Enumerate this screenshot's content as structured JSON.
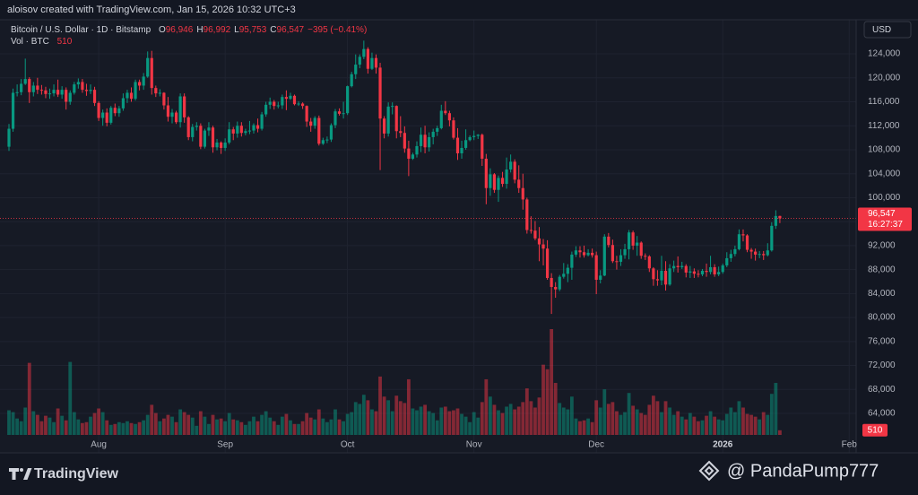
{
  "chart_data": {
    "type": "candlestick",
    "credit": "aloisov created with TradingView.com, Jan 15, 2026 10:32 UTC+3",
    "symbol": "Bitcoin / U.S. Dollar · 1D · Bitstamp",
    "ohlc_keys": [
      "O",
      "H",
      "L",
      "C"
    ],
    "ohlc_labels": [
      "96,946",
      "96,992",
      "95,753",
      "96,547"
    ],
    "change": "−395 (−0.41%)",
    "volume_title": "Vol · BTC",
    "currency": "USD",
    "last_price_label": "96,547",
    "countdown": "16:27:37",
    "brand": "TradingView",
    "watermark": "@ PandaPump777",
    "up_color": "#089981",
    "down_color": "#f23645",
    "grid": true,
    "xlim": [
      -2.2,
      207.7
    ],
    "ylim": [
      57420,
      129690
    ],
    "xticks": [
      {
        "value": 22,
        "label": "Aug"
      },
      {
        "value": 53,
        "label": "Sep"
      },
      {
        "value": 83,
        "label": "Oct"
      },
      {
        "value": 114,
        "label": "Nov"
      },
      {
        "value": 144,
        "label": "Dec"
      },
      {
        "value": 175,
        "label": "2026"
      },
      {
        "value": 206,
        "label": "Feb"
      }
    ],
    "yticks": [
      {
        "value": 64000,
        "label": "64,000"
      },
      {
        "value": 68000,
        "label": "68,000"
      },
      {
        "value": 72000,
        "label": "72,000"
      },
      {
        "value": 76000,
        "label": "76,000"
      },
      {
        "value": 80000,
        "label": "80,000"
      },
      {
        "value": 84000,
        "label": "84,000"
      },
      {
        "value": 88000,
        "label": "88,000"
      },
      {
        "value": 92000,
        "label": "92,000"
      },
      {
        "value": 96000,
        "label": "96,000"
      },
      {
        "value": 100000,
        "label": "100,000"
      },
      {
        "value": 104000,
        "label": "104,000"
      },
      {
        "value": 108000,
        "label": "108,000"
      },
      {
        "value": 112000,
        "label": "112,000"
      },
      {
        "value": 116000,
        "label": "116,000"
      },
      {
        "value": 120000,
        "label": "120,000"
      },
      {
        "value": 124000,
        "label": "124,000"
      }
    ],
    "open": [
      108500,
      111500,
      117500,
      117600,
      119000,
      119800,
      117600,
      118700,
      118000,
      117900,
      117300,
      117400,
      118000,
      117200,
      118000,
      116000,
      117500,
      118900,
      119300,
      118000,
      117800,
      118000,
      115800,
      113300,
      114200,
      112500,
      115000,
      114100,
      114900,
      116600,
      117500,
      116500,
      119300,
      118700,
      120200,
      123300,
      118300,
      117400,
      117500,
      115400,
      113500,
      114200,
      112600,
      116900,
      113400,
      110100,
      111800,
      112000,
      108500,
      111200,
      111700,
      108400,
      109200,
      108300,
      109200,
      111400,
      110700,
      112000,
      110800,
      111100,
      111200,
      112100,
      111500,
      113900,
      115500,
      116000,
      115300,
      115400,
      116800,
      116500,
      117000,
      115600,
      115700,
      115300,
      112700,
      112000,
      113300,
      109000,
      109600,
      109700,
      112100,
      114400,
      114000,
      114100,
      118600,
      120600,
      122200,
      123500,
      124800,
      121500,
      123300,
      121700,
      113200,
      110700,
      115200,
      115300,
      111100,
      110800,
      108200,
      106500,
      107200,
      108600,
      110500,
      108400,
      110100,
      111000,
      111600,
      114500,
      114100,
      112900,
      110000,
      107400,
      108300,
      109600,
      110100,
      110300,
      110500,
      106500,
      101600,
      103900,
      101300,
      103300,
      102300,
      104700,
      106000,
      103000,
      101600,
      99700,
      94600,
      94500,
      93200,
      92200,
      91500,
      86600,
      85100,
      84700,
      86800,
      87300,
      88300,
      90500,
      91200,
      90900,
      90400,
      90800,
      90400,
      86300,
      87000,
      93500,
      92100,
      89400,
      89300,
      90400,
      91400,
      94200,
      92000,
      92500,
      90300,
      90200,
      88200,
      86400,
      86200,
      87800,
      85500,
      88200,
      88600,
      88400,
      88600,
      87500,
      87700,
      87300,
      87200,
      87800,
      87600,
      88400,
      87200,
      87600,
      88700,
      89900,
      90600,
      91400,
      93900,
      93700,
      91300,
      91000,
      90500,
      90600,
      90400,
      91200,
      95300,
      96946
    ],
    "high": [
      112300,
      118200,
      118900,
      119800,
      123200,
      120100,
      119300,
      120000,
      118800,
      118500,
      118200,
      118900,
      119700,
      118600,
      118400,
      117900,
      119300,
      119900,
      119800,
      119000,
      118900,
      118500,
      116100,
      114700,
      114900,
      115300,
      115700,
      115300,
      117400,
      118000,
      118400,
      119700,
      119700,
      120800,
      124400,
      124500,
      118700,
      118100,
      117600,
      116800,
      114800,
      114500,
      117400,
      117400,
      113600,
      112300,
      112600,
      112400,
      111500,
      112600,
      112000,
      109800,
      109400,
      109900,
      112600,
      111800,
      112700,
      112600,
      111500,
      112800,
      112400,
      113200,
      114300,
      116000,
      116700,
      116300,
      116000,
      117200,
      117900,
      117500,
      117200,
      116100,
      115900,
      115400,
      113300,
      113600,
      113700,
      110000,
      110200,
      112400,
      114800,
      114900,
      116000,
      118700,
      121000,
      123900,
      123900,
      126200,
      125100,
      124200,
      123900,
      122500,
      113600,
      115900,
      115900,
      115400,
      113600,
      111900,
      109500,
      107500,
      109400,
      111700,
      112000,
      110900,
      111500,
      112000,
      115500,
      116100,
      114500,
      113400,
      111600,
      109500,
      111400,
      110400,
      111200,
      110600,
      110700,
      107300,
      104900,
      104100,
      103700,
      104300,
      106700,
      107200,
      106400,
      105400,
      104000,
      100000,
      96900,
      96100,
      95100,
      93100,
      92900,
      87400,
      85900,
      87100,
      89100,
      88900,
      91000,
      91900,
      91900,
      92000,
      91400,
      91500,
      91000,
      87900,
      93900,
      94100,
      93000,
      90300,
      91400,
      92300,
      94600,
      94500,
      93600,
      92700,
      90700,
      90400,
      88400,
      87900,
      90300,
      89400,
      88900,
      89500,
      90200,
      89300,
      88900,
      88600,
      88200,
      87900,
      88100,
      89000,
      90300,
      88900,
      88500,
      89000,
      90900,
      91300,
      92000,
      94700,
      94700,
      93900,
      91600,
      91500,
      91100,
      91100,
      92400,
      95900,
      97900,
      96992
    ],
    "low": [
      107800,
      111000,
      116900,
      117100,
      118800,
      115800,
      116900,
      117300,
      117200,
      116600,
      116500,
      116900,
      116800,
      116500,
      114700,
      115500,
      117200,
      118200,
      117500,
      117000,
      117300,
      115300,
      112800,
      112000,
      111900,
      112200,
      113600,
      113500,
      114500,
      115800,
      116000,
      116200,
      117900,
      118000,
      120000,
      117200,
      116800,
      116900,
      114700,
      112700,
      112400,
      112300,
      111700,
      112500,
      109600,
      109400,
      111200,
      108100,
      108200,
      110300,
      107500,
      107900,
      107300,
      107800,
      108900,
      109600,
      110000,
      110200,
      110400,
      110600,
      110700,
      110900,
      111200,
      113500,
      114800,
      114700,
      114900,
      114800,
      114600,
      116300,
      115400,
      115300,
      114800,
      111800,
      111000,
      111500,
      108700,
      108800,
      109100,
      109300,
      111600,
      113700,
      113200,
      113800,
      118400,
      119800,
      121600,
      123100,
      120700,
      121300,
      120700,
      104600,
      109900,
      110200,
      113900,
      109900,
      110100,
      107500,
      103600,
      106300,
      106700,
      107600,
      107400,
      107700,
      108900,
      110300,
      111400,
      113800,
      111900,
      109700,
      106300,
      106500,
      108000,
      109400,
      109600,
      109800,
      105300,
      98900,
      100300,
      100800,
      99300,
      101800,
      101500,
      104200,
      102400,
      100800,
      98000,
      94000,
      94000,
      92900,
      89400,
      88700,
      86300,
      80600,
      83300,
      84400,
      86500,
      85900,
      86300,
      90100,
      90000,
      90000,
      90200,
      90000,
      83900,
      85700,
      86900,
      91700,
      89100,
      88000,
      88600,
      89800,
      89700,
      91300,
      90300,
      89800,
      89600,
      87600,
      85300,
      85300,
      85400,
      84500,
      85300,
      87600,
      87500,
      88100,
      86700,
      86600,
      86600,
      86700,
      86900,
      86800,
      87200,
      86800,
      86900,
      87300,
      88400,
      89300,
      90200,
      91200,
      92700,
      90900,
      89800,
      89500,
      89900,
      89600,
      90200,
      91000,
      94800,
      95753
    ],
    "close": [
      111500,
      117500,
      117600,
      119000,
      119800,
      117600,
      118700,
      118000,
      117900,
      117300,
      117400,
      118000,
      117200,
      118000,
      116000,
      117500,
      118900,
      119300,
      118000,
      117800,
      118000,
      115800,
      113300,
      114200,
      112500,
      115000,
      114100,
      114900,
      116600,
      117500,
      116500,
      119300,
      118700,
      120200,
      123300,
      118300,
      117400,
      117500,
      115400,
      113500,
      114200,
      112600,
      116900,
      113400,
      110100,
      111800,
      112000,
      108500,
      111200,
      111700,
      108400,
      109200,
      108300,
      109200,
      111400,
      110700,
      112000,
      110800,
      111100,
      111200,
      112100,
      111500,
      113900,
      115500,
      116000,
      115300,
      115400,
      116800,
      116500,
      117000,
      115600,
      115700,
      115300,
      112700,
      112000,
      113300,
      109000,
      109600,
      109700,
      112100,
      114400,
      114000,
      114100,
      118600,
      120600,
      122200,
      123500,
      124800,
      121500,
      123300,
      121700,
      113200,
      110700,
      115200,
      115300,
      111100,
      110800,
      108200,
      106500,
      107200,
      108600,
      110500,
      108400,
      110100,
      111000,
      111600,
      114500,
      114100,
      112900,
      110000,
      107400,
      108300,
      109600,
      110100,
      110300,
      110500,
      106500,
      101600,
      103900,
      101300,
      103300,
      102300,
      104700,
      106000,
      103000,
      101600,
      99700,
      94600,
      94500,
      93200,
      92200,
      91500,
      86600,
      85100,
      84700,
      86800,
      87300,
      88300,
      90500,
      91200,
      90900,
      90400,
      90800,
      90400,
      86300,
      87000,
      93500,
      92100,
      89400,
      89300,
      90400,
      91400,
      94200,
      92000,
      92500,
      90300,
      90200,
      88200,
      86400,
      86200,
      87800,
      85500,
      88200,
      88600,
      88400,
      88600,
      87500,
      87700,
      87300,
      87200,
      87800,
      87600,
      88400,
      87200,
      87600,
      88700,
      89900,
      90600,
      91400,
      93900,
      93700,
      91300,
      91000,
      90500,
      90600,
      90400,
      91200,
      95300,
      96942,
      96547
    ],
    "volume": [
      2700,
      2500,
      1800,
      1500,
      3000,
      7900,
      2600,
      2200,
      1500,
      2100,
      1900,
      1400,
      2900,
      2100,
      1600,
      8000,
      2500,
      1700,
      1300,
      1400,
      2000,
      2400,
      2900,
      2500,
      1600,
      1100,
      1200,
      1400,
      1300,
      1500,
      1300,
      1200,
      1400,
      1600,
      2200,
      3300,
      2400,
      1500,
      1800,
      2200,
      2000,
      1400,
      2800,
      2500,
      2200,
      1900,
      1000,
      2600,
      2000,
      1200,
      2200,
      1700,
      1800,
      1500,
      2400,
      1700,
      1600,
      1400,
      1100,
      1500,
      2000,
      1500,
      2200,
      2600,
      1900,
      1500,
      1100,
      2000,
      2300,
      1600,
      1200,
      1200,
      1500,
      2400,
      1900,
      1700,
      2800,
      1800,
      1400,
      1700,
      2800,
      1700,
      1500,
      2300,
      2500,
      3600,
      3400,
      4400,
      3800,
      2800,
      2600,
      6400,
      4200,
      3800,
      2600,
      4300,
      3700,
      3500,
      6100,
      2900,
      2700,
      3100,
      3300,
      2600,
      2400,
      1600,
      3000,
      3100,
      2600,
      2700,
      2900,
      2300,
      2000,
      1400,
      2500,
      1900,
      3600,
      6100,
      4200,
      3300,
      2700,
      2400,
      3100,
      3400,
      2800,
      3100,
      3600,
      5100,
      3700,
      3000,
      4100,
      7700,
      7200,
      11600,
      5700,
      3500,
      3000,
      2800,
      4200,
      1800,
      1500,
      1600,
      1800,
      1400,
      3800,
      3000,
      5000,
      3400,
      3600,
      2600,
      2200,
      2500,
      4600,
      3200,
      2800,
      2400,
      2200,
      3300,
      4300,
      3700,
      2500,
      3700,
      3000,
      2200,
      2600,
      2000,
      1700,
      2400,
      2000,
      1500,
      1600,
      2100,
      2600,
      2000,
      1700,
      1600,
      2300,
      3000,
      2500,
      3700,
      3000,
      2300,
      2200,
      2000,
      1700,
      2500,
      2200,
      4500,
      5700,
      510
    ]
  }
}
